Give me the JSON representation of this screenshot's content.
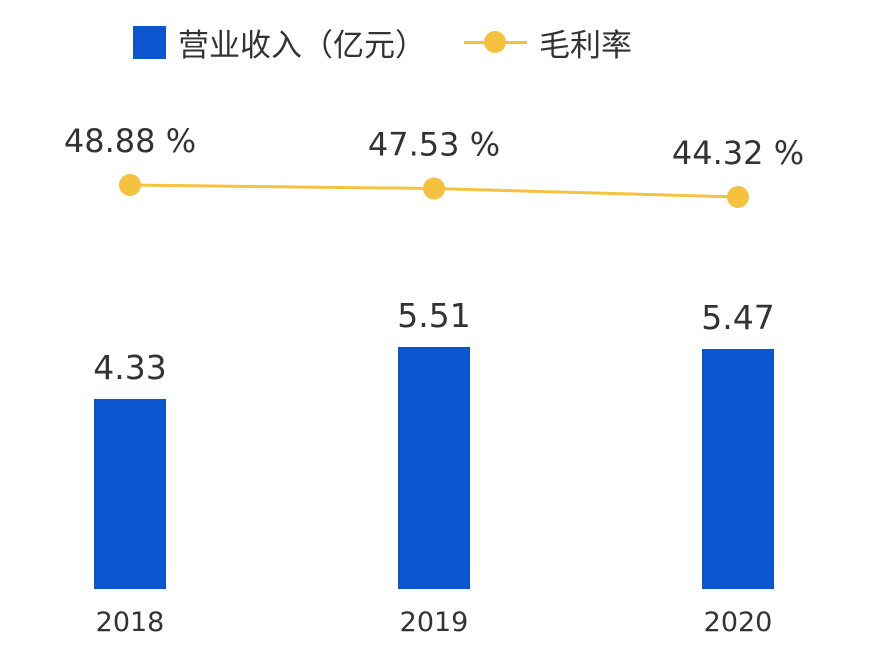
{
  "chart_data": {
    "type": "bar",
    "categories": [
      "2018",
      "2019",
      "2020"
    ],
    "series": [
      {
        "name": "营业收入（亿元）",
        "type": "bar",
        "color": "#0b55cf",
        "values": [
          4.33,
          5.51,
          5.47
        ],
        "labels": [
          "4.33",
          "5.51",
          "5.47"
        ]
      },
      {
        "name": "毛利率",
        "type": "line",
        "color": "#f5c240",
        "values": [
          48.88,
          47.53,
          44.32
        ],
        "labels": [
          "48.88 %",
          "47.53 %",
          "44.32 %"
        ]
      }
    ],
    "title": "",
    "xlabel": "",
    "ylabel": "",
    "grid": false,
    "legend_position": "top"
  }
}
